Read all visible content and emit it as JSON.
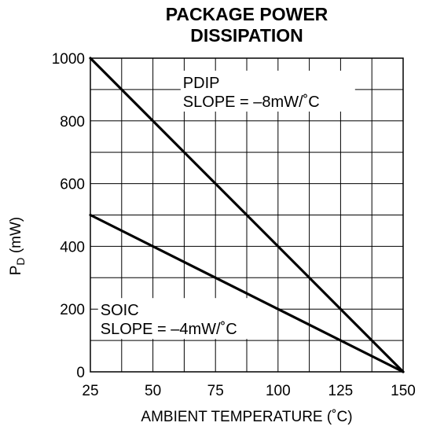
{
  "chart_data": {
    "type": "line",
    "title_line1": "PACKAGE POWER",
    "title_line2": "DISSIPATION",
    "xlabel": "AMBIENT TEMPERATURE (˚C)",
    "ylabel_main": "P",
    "ylabel_sub": "D",
    "ylabel_unit": " (mW)",
    "xlim": [
      25,
      150
    ],
    "ylim": [
      0,
      1000
    ],
    "xticks": [
      25,
      50,
      75,
      100,
      125,
      150
    ],
    "yticks": [
      0,
      200,
      400,
      600,
      800,
      1000
    ],
    "grid": true,
    "series": [
      {
        "name": "PDIP",
        "x": [
          25,
          150
        ],
        "y": [
          1000,
          0
        ]
      },
      {
        "name": "SOIC",
        "x": [
          25,
          150
        ],
        "y": [
          500,
          0
        ]
      }
    ],
    "annotations": [
      {
        "line1": "PDIP",
        "line2": "SLOPE = –8mW/˚C",
        "at_x": 62,
        "at_y": 905
      },
      {
        "line1": "SOIC",
        "line2": "SLOPE = –4mW/˚C",
        "at_x": 29,
        "at_y": 180
      }
    ]
  }
}
